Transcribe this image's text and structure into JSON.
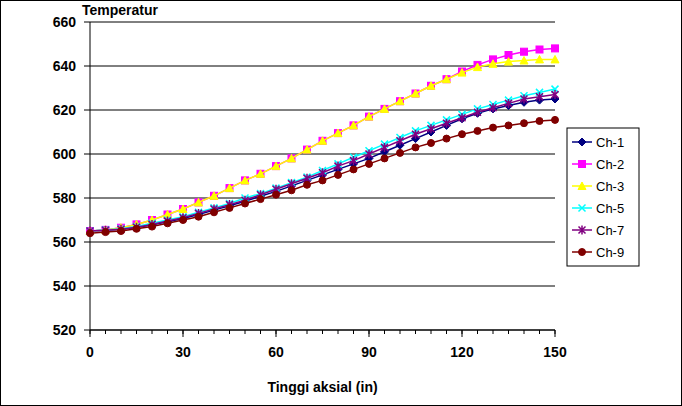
{
  "chart_data": {
    "type": "line",
    "title": "Temperatur",
    "x_label": "Tinggi aksial (in)",
    "x": [
      0,
      5,
      10,
      15,
      20,
      25,
      30,
      35,
      40,
      45,
      50,
      55,
      60,
      65,
      70,
      75,
      80,
      85,
      90,
      95,
      100,
      105,
      110,
      115,
      120,
      125,
      130,
      135,
      140,
      145,
      150
    ],
    "xlim": [
      0,
      150
    ],
    "xticks": [
      0,
      30,
      60,
      90,
      120,
      150
    ],
    "ylim": [
      520,
      660
    ],
    "yticks": [
      520,
      540,
      560,
      580,
      600,
      620,
      640,
      660
    ],
    "grid": true,
    "legend": "right",
    "series": [
      {
        "name": "Ch-1",
        "color": "#000080",
        "marker": "diamond",
        "values": [
          565,
          565.3,
          565.8,
          566.6,
          567.8,
          569.2,
          570.7,
          572.5,
          574.5,
          576.5,
          578.5,
          580.8,
          583,
          585.5,
          588,
          590.5,
          593,
          595.5,
          598,
          601,
          604,
          607,
          610,
          613,
          616,
          618.5,
          620.5,
          622,
          623.5,
          624.5,
          625
        ]
      },
      {
        "name": "Ch-2",
        "color": "#ff00ff",
        "marker": "square",
        "values": [
          565,
          565.5,
          566.5,
          568,
          570,
          572.5,
          575,
          578,
          581,
          584.5,
          588,
          591,
          594.5,
          598,
          602,
          606,
          609.5,
          613,
          617,
          620.5,
          624,
          627.5,
          631,
          634,
          637.5,
          640.5,
          643,
          645,
          646.5,
          647.5,
          648
        ]
      },
      {
        "name": "Ch-3",
        "color": "#ffff00",
        "marker": "triangle",
        "values": [
          565,
          565.5,
          566.5,
          568,
          570,
          572.5,
          575,
          578,
          581,
          584.5,
          588,
          591,
          594.5,
          598,
          602,
          606,
          609.5,
          613,
          617,
          620.5,
          624,
          627.5,
          631,
          634,
          637,
          639.5,
          641,
          642,
          642.5,
          643,
          643
        ]
      },
      {
        "name": "Ch-5",
        "color": "#00ffff",
        "marker": "x",
        "values": [
          565,
          565.5,
          566,
          567,
          568.5,
          570,
          571.5,
          573.5,
          575.5,
          577.5,
          580,
          582,
          584.5,
          587,
          589.5,
          592.5,
          595.5,
          598.5,
          601.5,
          604.5,
          607.5,
          610.5,
          613,
          615.5,
          618,
          620.5,
          622.5,
          624.5,
          626.5,
          628,
          629.5
        ]
      },
      {
        "name": "Ch-7",
        "color": "#800080",
        "marker": "star",
        "values": [
          565,
          565.3,
          565.8,
          566.7,
          568,
          569.5,
          571,
          573,
          575,
          577,
          579,
          581.5,
          584,
          586.5,
          589,
          591.5,
          594.5,
          597,
          600,
          603,
          606,
          609,
          611.5,
          614,
          616.5,
          619,
          621,
          623,
          625,
          626,
          627
        ]
      },
      {
        "name": "Ch-9",
        "color": "#800000",
        "marker": "circle",
        "values": [
          564,
          564.5,
          565,
          566,
          567,
          568.5,
          570,
          571.5,
          573.5,
          575.5,
          577.5,
          579.5,
          581.5,
          583.5,
          586,
          588,
          590.5,
          593,
          595.5,
          598,
          600.5,
          603,
          605,
          607,
          609,
          610.5,
          612,
          613,
          614,
          615,
          615.5
        ]
      }
    ]
  }
}
